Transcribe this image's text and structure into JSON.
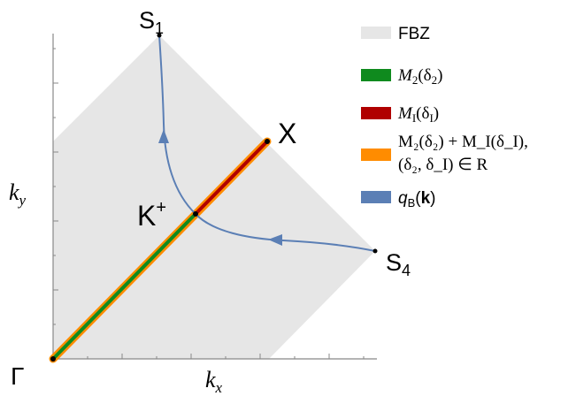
{
  "axes": {
    "x_label_base": "k",
    "x_label_sub": "x",
    "y_label_base": "k",
    "y_label_sub": "y"
  },
  "points": {
    "gamma": "Γ",
    "k_plus": "K",
    "k_plus_sup": "+",
    "x": "X",
    "s1": "S",
    "s1_sub": "1",
    "s4": "S",
    "s4_sub": "4"
  },
  "legend": {
    "fbz": "FBZ",
    "m2_a": "M",
    "m2_b": "2",
    "m2_c": "(δ",
    "m2_d": "2",
    "m2_e": ")",
    "mi_a": "M",
    "mi_b": "I",
    "mi_c": "(δ",
    "mi_d": "I",
    "mi_e": ")",
    "combo_line1": "M₂(δ₂) + M_I(δ_I),",
    "combo_line2": "(δ₂, δ_I) ∈ R",
    "qb_a": "q",
    "qb_b": "B",
    "qb_c": "(",
    "qb_d": "k",
    "qb_e": ")"
  },
  "colors": {
    "fbz": "#e6e6e6",
    "m2": "#0f8a1e",
    "mi": "#b00000",
    "combo": "#ff8c00",
    "qb": "#5b7fb5"
  }
}
